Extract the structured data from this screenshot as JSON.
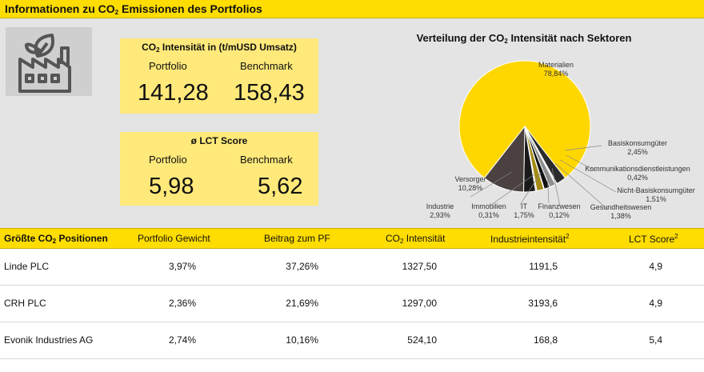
{
  "header": {
    "title_pre": "Informationen zu CO",
    "title_sub": "2",
    "title_post": " Emissionen des Portfolios"
  },
  "icon": {
    "name": "factory-leaf-icon"
  },
  "kpi_co2": {
    "title_pre": "CO",
    "title_sub": "2",
    "title_post": " Intensität in (t/mUSD Umsatz)",
    "portfolio_label": "Portfolio",
    "benchmark_label": "Benchmark",
    "portfolio_value": "141,28",
    "benchmark_value": "158,43"
  },
  "kpi_lct": {
    "title": "ø LCT Score",
    "portfolio_label": "Portfolio",
    "benchmark_label": "Benchmark",
    "portfolio_value": "5,98",
    "benchmark_value": "5,62"
  },
  "chart_data": {
    "type": "pie",
    "title": "Verteilung der CO2 Intensität nach Sektoren",
    "slices": [
      {
        "label": "Materialien",
        "value": 78.84,
        "value_text": "78,84%",
        "color": "#FFD700"
      },
      {
        "label": "Basiskonsumgüter",
        "value": 2.45,
        "value_text": "2,45%",
        "color": "#2B2B2B"
      },
      {
        "label": "Kommunikationsdienstleistungen",
        "value": 0.42,
        "value_text": "0,42%",
        "color": "#E0E0E0"
      },
      {
        "label": "Nicht-Basiskonsumgüter",
        "value": 1.51,
        "value_text": "1,51%",
        "color": "#8F8F8F"
      },
      {
        "label": "Gesundheitswesen",
        "value": 1.38,
        "value_text": "1,38%",
        "color": "#111111"
      },
      {
        "label": "Finanzwesen",
        "value": 0.12,
        "value_text": "0,12%",
        "color": "#FFFFFF"
      },
      {
        "label": "IT",
        "value": 1.75,
        "value_text": "1,75%",
        "color": "#A38A14"
      },
      {
        "label": "Immobilien",
        "value": 0.31,
        "value_text": "0,31%",
        "color": "#C8C8C8"
      },
      {
        "label": "Industrie",
        "value": 2.93,
        "value_text": "2,93%",
        "color": "#1A1A1A"
      },
      {
        "label": "Versorger",
        "value": 10.28,
        "value_text": "10,28%",
        "color": "#4A4140"
      }
    ]
  },
  "table": {
    "headers": {
      "name_pre": "Größte CO",
      "name_sub": "2",
      "name_post": " Positionen",
      "weight": "Portfolio Gewicht",
      "contribution": "Beitrag zum PF",
      "intensity_pre": "CO",
      "intensity_sub": "2",
      "intensity_post": " Intensität",
      "industry": "Industrieintensität",
      "industry_sup": "2",
      "lct": "LCT Score",
      "lct_sup": "2"
    },
    "rows": [
      {
        "name": "Linde PLC",
        "weight": "3,97%",
        "contribution": "37,26%",
        "intensity": "1327,50",
        "industry": "1191,5",
        "lct": "4,9"
      },
      {
        "name": "CRH PLC",
        "weight": "2,36%",
        "contribution": "21,69%",
        "intensity": "1297,00",
        "industry": "3193,6",
        "lct": "4,9"
      },
      {
        "name": "Evonik Industries AG",
        "weight": "2,74%",
        "contribution": "10,16%",
        "intensity": "524,10",
        "industry": "168,8",
        "lct": "5,4"
      }
    ]
  }
}
